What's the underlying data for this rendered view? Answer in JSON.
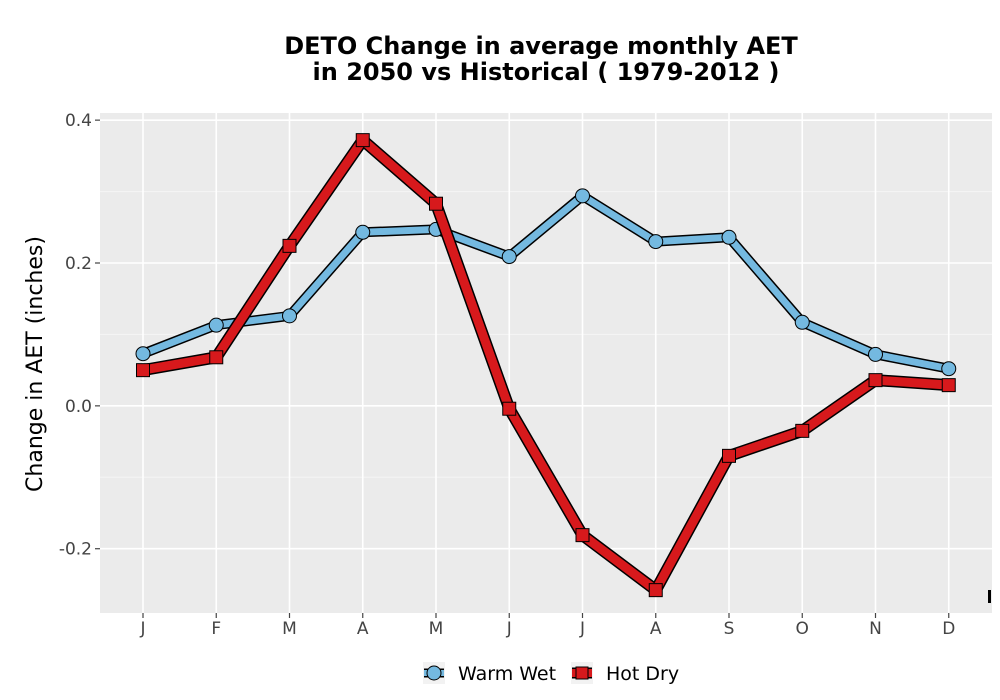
{
  "chart_data": {
    "type": "line",
    "title": "DETO  Change in average monthly AET",
    "subtitle": "in 2050 vs Historical ( 1979-2012 )",
    "xlabel": "",
    "ylabel": "Change in AET (inches)",
    "categories": [
      "J",
      "F",
      "M",
      "A",
      "M",
      "J",
      "J",
      "A",
      "S",
      "O",
      "N",
      "D"
    ],
    "ylim": [
      -0.29,
      0.41
    ],
    "yticks": [
      -0.2,
      0.0,
      0.2,
      0.4
    ],
    "ytick_labels": [
      "-0.2",
      "0.0",
      "0.2",
      "0.4"
    ],
    "grid": true,
    "legend_position": "bottom",
    "series": [
      {
        "name": "Warm Wet",
        "color": "#74b9e0",
        "marker": "circle",
        "values": [
          0.073,
          0.113,
          0.126,
          0.243,
          0.247,
          0.209,
          0.294,
          0.23,
          0.236,
          0.117,
          0.072,
          0.052
        ]
      },
      {
        "name": "Hot Dry",
        "color": "#d7191c",
        "marker": "square",
        "values": [
          0.05,
          0.068,
          0.224,
          0.372,
          0.283,
          -0.004,
          -0.181,
          -0.258,
          -0.07,
          -0.035,
          0.036,
          0.029
        ]
      }
    ]
  }
}
